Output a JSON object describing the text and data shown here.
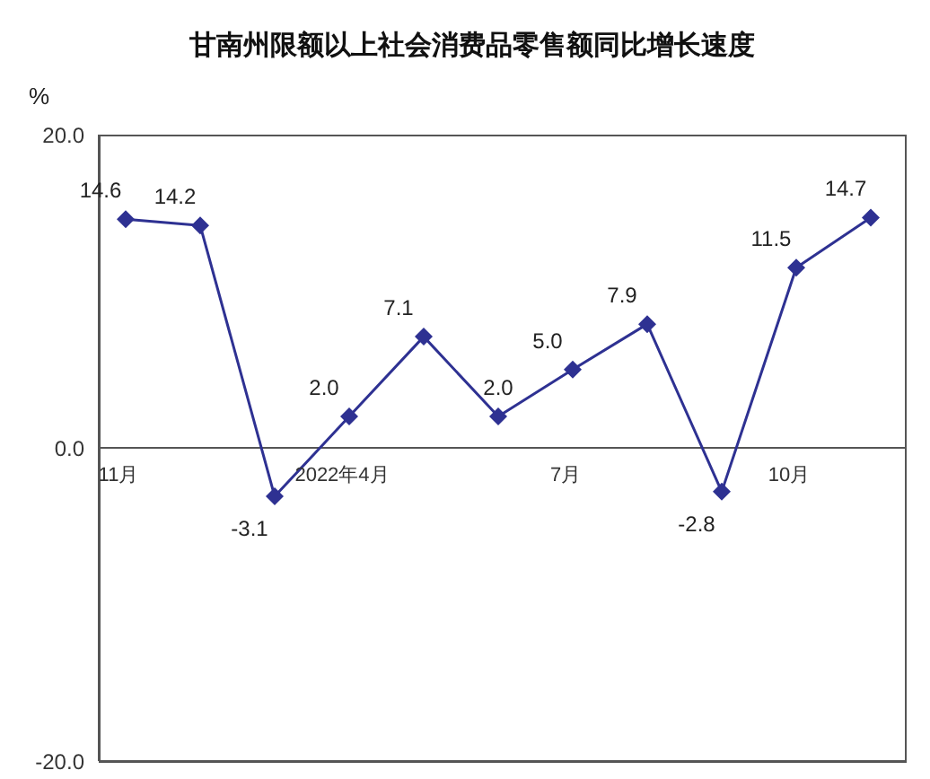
{
  "chart_data": {
    "type": "line",
    "title": "甘南州限额以上社会消费品零售额同比增长速度",
    "ylabel": "%",
    "categories": [
      "11月",
      null,
      null,
      "2022年4月",
      null,
      null,
      "7月",
      null,
      null,
      "10月",
      null
    ],
    "series": [
      {
        "color": "#2e3192",
        "values": [
          14.6,
          14.2,
          -3.1,
          2.0,
          7.1,
          2.0,
          5.0,
          7.9,
          -2.8,
          11.5,
          14.7
        ],
        "value_labels": [
          "14.6",
          "14.2",
          "-3.1",
          "2.0",
          "7.1",
          "2.0",
          "5.0",
          "7.9",
          "-2.8",
          "11.5",
          "14.7"
        ]
      }
    ],
    "ylim": [
      -20,
      20
    ],
    "yticks": [
      {
        "value": -20,
        "label": "-20.0"
      },
      {
        "value": 0,
        "label": "0.0"
      },
      {
        "value": 20,
        "label": "20.0"
      }
    ],
    "marker": "diamond",
    "line_style": "solid"
  }
}
